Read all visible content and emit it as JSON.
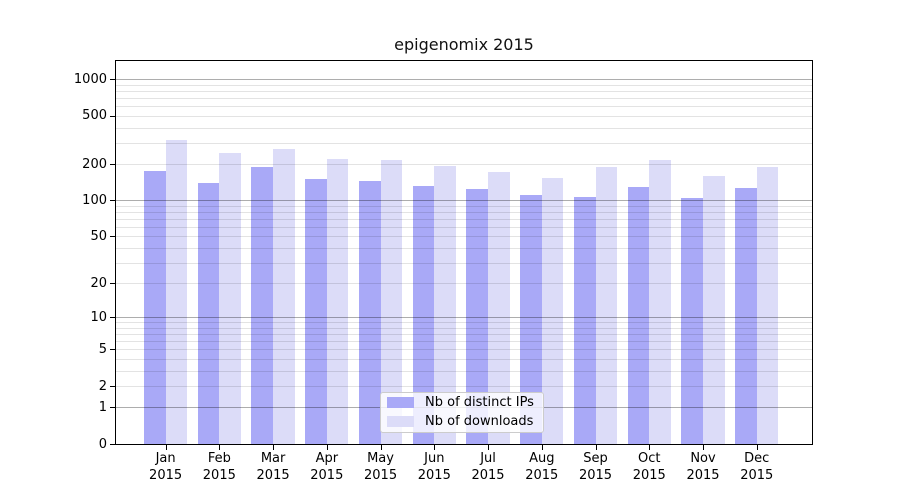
{
  "title": "epigenomix 2015",
  "chart_data": {
    "type": "bar",
    "title": "epigenomix 2015",
    "categories": [
      "Jan 2015",
      "Feb 2015",
      "Mar 2015",
      "Apr 2015",
      "May 2015",
      "Jun 2015",
      "Jul 2015",
      "Aug 2015",
      "Sep 2015",
      "Oct 2015",
      "Nov 2015",
      "Dec 2015"
    ],
    "x_tick_months": [
      "Jan",
      "Feb",
      "Mar",
      "Apr",
      "May",
      "Jun",
      "Jul",
      "Aug",
      "Sep",
      "Oct",
      "Nov",
      "Dec"
    ],
    "x_tick_year": "2015",
    "series": [
      {
        "name": "Nb of distinct IPs",
        "color": "#a9a9f7",
        "values": [
          178,
          142,
          192,
          153,
          146,
          133,
          125,
          112,
          108,
          131,
          106,
          128
        ]
      },
      {
        "name": "Nb of downloads",
        "color": "#dcdcf8",
        "values": [
          322,
          248,
          270,
          224,
          218,
          195,
          174,
          154,
          192,
          218,
          161,
          192
        ]
      }
    ],
    "yaxis": {
      "scale": "log10(value+1)",
      "ylim": [
        0,
        1469
      ],
      "tick_values": [
        0,
        1,
        2,
        5,
        10,
        20,
        50,
        100,
        200,
        500,
        1000
      ],
      "tick_labels": [
        "0",
        "1",
        "2",
        "5",
        "10",
        "20",
        "50",
        "100",
        "200",
        "500",
        "1000"
      ],
      "major_gridlines": [
        1,
        10,
        100,
        1000
      ],
      "minor_gridlines": [
        2,
        3,
        4,
        5,
        6,
        7,
        8,
        9,
        20,
        30,
        40,
        50,
        60,
        70,
        80,
        90,
        200,
        300,
        400,
        500,
        600,
        700,
        800,
        900
      ]
    },
    "xlabel": "",
    "ylabel": "",
    "legend": {
      "entries": [
        "Nb of distinct IPs",
        "Nb of downloads"
      ],
      "position": "bottom-center"
    },
    "grid": true
  },
  "colors": {
    "background": "#ffffff",
    "bar_distinct_ips": "#a9a9f7",
    "bar_downloads": "#dcdcf8",
    "axis": "#000000",
    "major_grid": "rgba(0,0,0,0.32)",
    "minor_grid": "rgba(0,0,0,0.11)",
    "legend_border": "#cccccc",
    "legend_background": "rgba(255,255,255,0.8)"
  }
}
